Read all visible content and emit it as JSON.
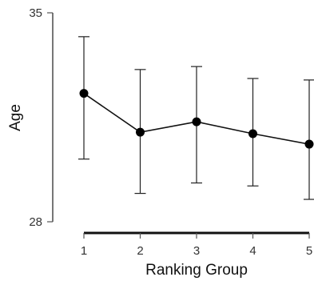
{
  "chart_data": {
    "type": "line",
    "xlabel": "Ranking Group",
    "ylabel": "Age",
    "x": [
      1,
      2,
      3,
      4,
      5
    ],
    "x_tick_labels": [
      "1",
      "2",
      "3",
      "4",
      "5"
    ],
    "y_tick_labels": [
      "28",
      "35"
    ],
    "ylim": [
      28,
      35
    ],
    "series": [
      {
        "values": [
          32.3,
          31.0,
          31.35,
          30.95,
          30.6
        ],
        "error_low": [
          30.1,
          28.95,
          29.3,
          29.2,
          28.75
        ],
        "error_high": [
          34.2,
          33.1,
          33.2,
          32.8,
          32.75
        ]
      }
    ],
    "grid": false,
    "legend": "none",
    "colors": {
      "line": "#111111",
      "marker": "#000000",
      "axis": "#555555"
    }
  }
}
